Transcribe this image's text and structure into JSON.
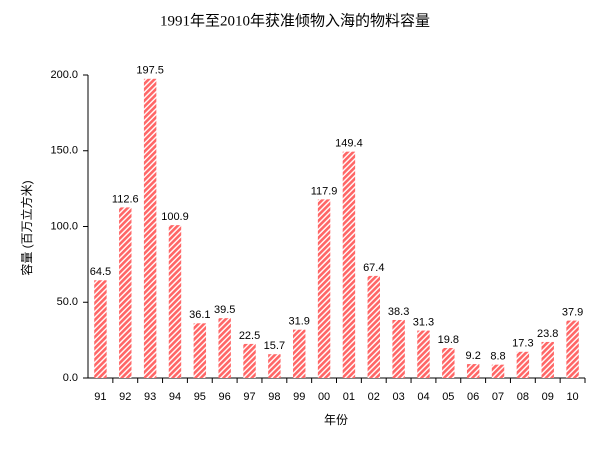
{
  "chart_data": {
    "type": "bar",
    "title": "1991年至2010年获准倾物入海的物料容量",
    "x_label": "年份",
    "y_label": "容量 (百万立方米)",
    "categories": [
      "91",
      "92",
      "93",
      "94",
      "95",
      "96",
      "97",
      "98",
      "99",
      "00",
      "01",
      "02",
      "03",
      "04",
      "05",
      "06",
      "07",
      "08",
      "09",
      "10"
    ],
    "values": [
      64.5,
      112.6,
      197.5,
      100.9,
      36.1,
      39.5,
      22.5,
      15.7,
      31.9,
      117.9,
      149.4,
      67.4,
      38.3,
      31.3,
      19.8,
      9.2,
      8.8,
      17.3,
      23.8,
      37.9
    ],
    "color": "#ff6666",
    "ylim": [
      0,
      200
    ],
    "yticks": [
      {
        "value": 0,
        "label": "0.0"
      },
      {
        "value": 50,
        "label": "50.0"
      },
      {
        "value": 100,
        "label": "100.0"
      },
      {
        "value": 150,
        "label": "150.0"
      },
      {
        "value": 200,
        "label": "200.0"
      }
    ],
    "grid": false
  }
}
